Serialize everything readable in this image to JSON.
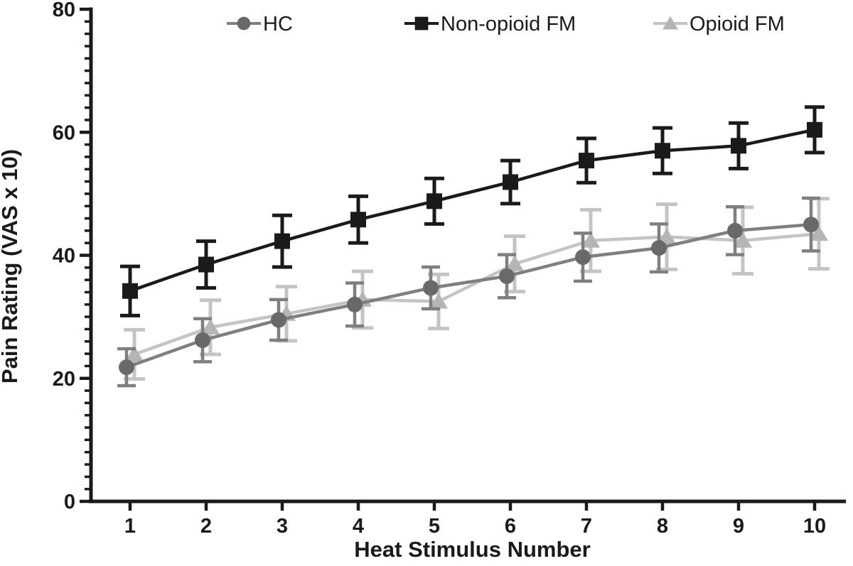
{
  "chart_data": {
    "type": "line",
    "title": "",
    "xlabel": "Heat Stimulus Number",
    "ylabel": "Pain Rating (VAS x 10)",
    "x": [
      1,
      2,
      3,
      4,
      5,
      6,
      7,
      8,
      9,
      10
    ],
    "xlim": [
      0.5,
      10.5
    ],
    "ylim": [
      0,
      80
    ],
    "y_major_ticks": [
      0,
      20,
      40,
      60,
      80
    ],
    "y_minor_step": 2,
    "grid": false,
    "legend_position": "top",
    "error_bars": true,
    "series": [
      {
        "name": "HC",
        "marker": "circle",
        "color": "#7f7f7f",
        "marker_color": "#696969",
        "values": [
          21.8,
          26.2,
          29.5,
          32.0,
          34.7,
          36.6,
          39.7,
          41.2,
          44.0,
          45.0
        ],
        "errors": [
          3.0,
          3.5,
          3.3,
          3.5,
          3.4,
          3.5,
          3.9,
          3.9,
          3.9,
          4.3
        ]
      },
      {
        "name": "Non-opioid FM",
        "marker": "square",
        "color": "#1a1a1a",
        "marker_color": "#1a1a1a",
        "values": [
          34.2,
          38.5,
          42.3,
          45.8,
          48.8,
          51.9,
          55.4,
          57.0,
          57.8,
          60.4
        ],
        "errors": [
          4.0,
          3.8,
          4.2,
          3.8,
          3.7,
          3.5,
          3.6,
          3.7,
          3.7,
          3.7
        ]
      },
      {
        "name": "Opioid FM",
        "marker": "triangle",
        "color": "#c4c4c4",
        "marker_color": "#b5b5b5",
        "values": [
          23.9,
          28.3,
          30.5,
          32.8,
          32.5,
          38.6,
          42.4,
          43.0,
          42.4,
          43.5
        ],
        "errors": [
          4.0,
          4.4,
          4.4,
          4.6,
          4.4,
          4.5,
          5.0,
          5.3,
          5.4,
          5.7
        ]
      }
    ],
    "axis_color": "#1a1a1a"
  }
}
